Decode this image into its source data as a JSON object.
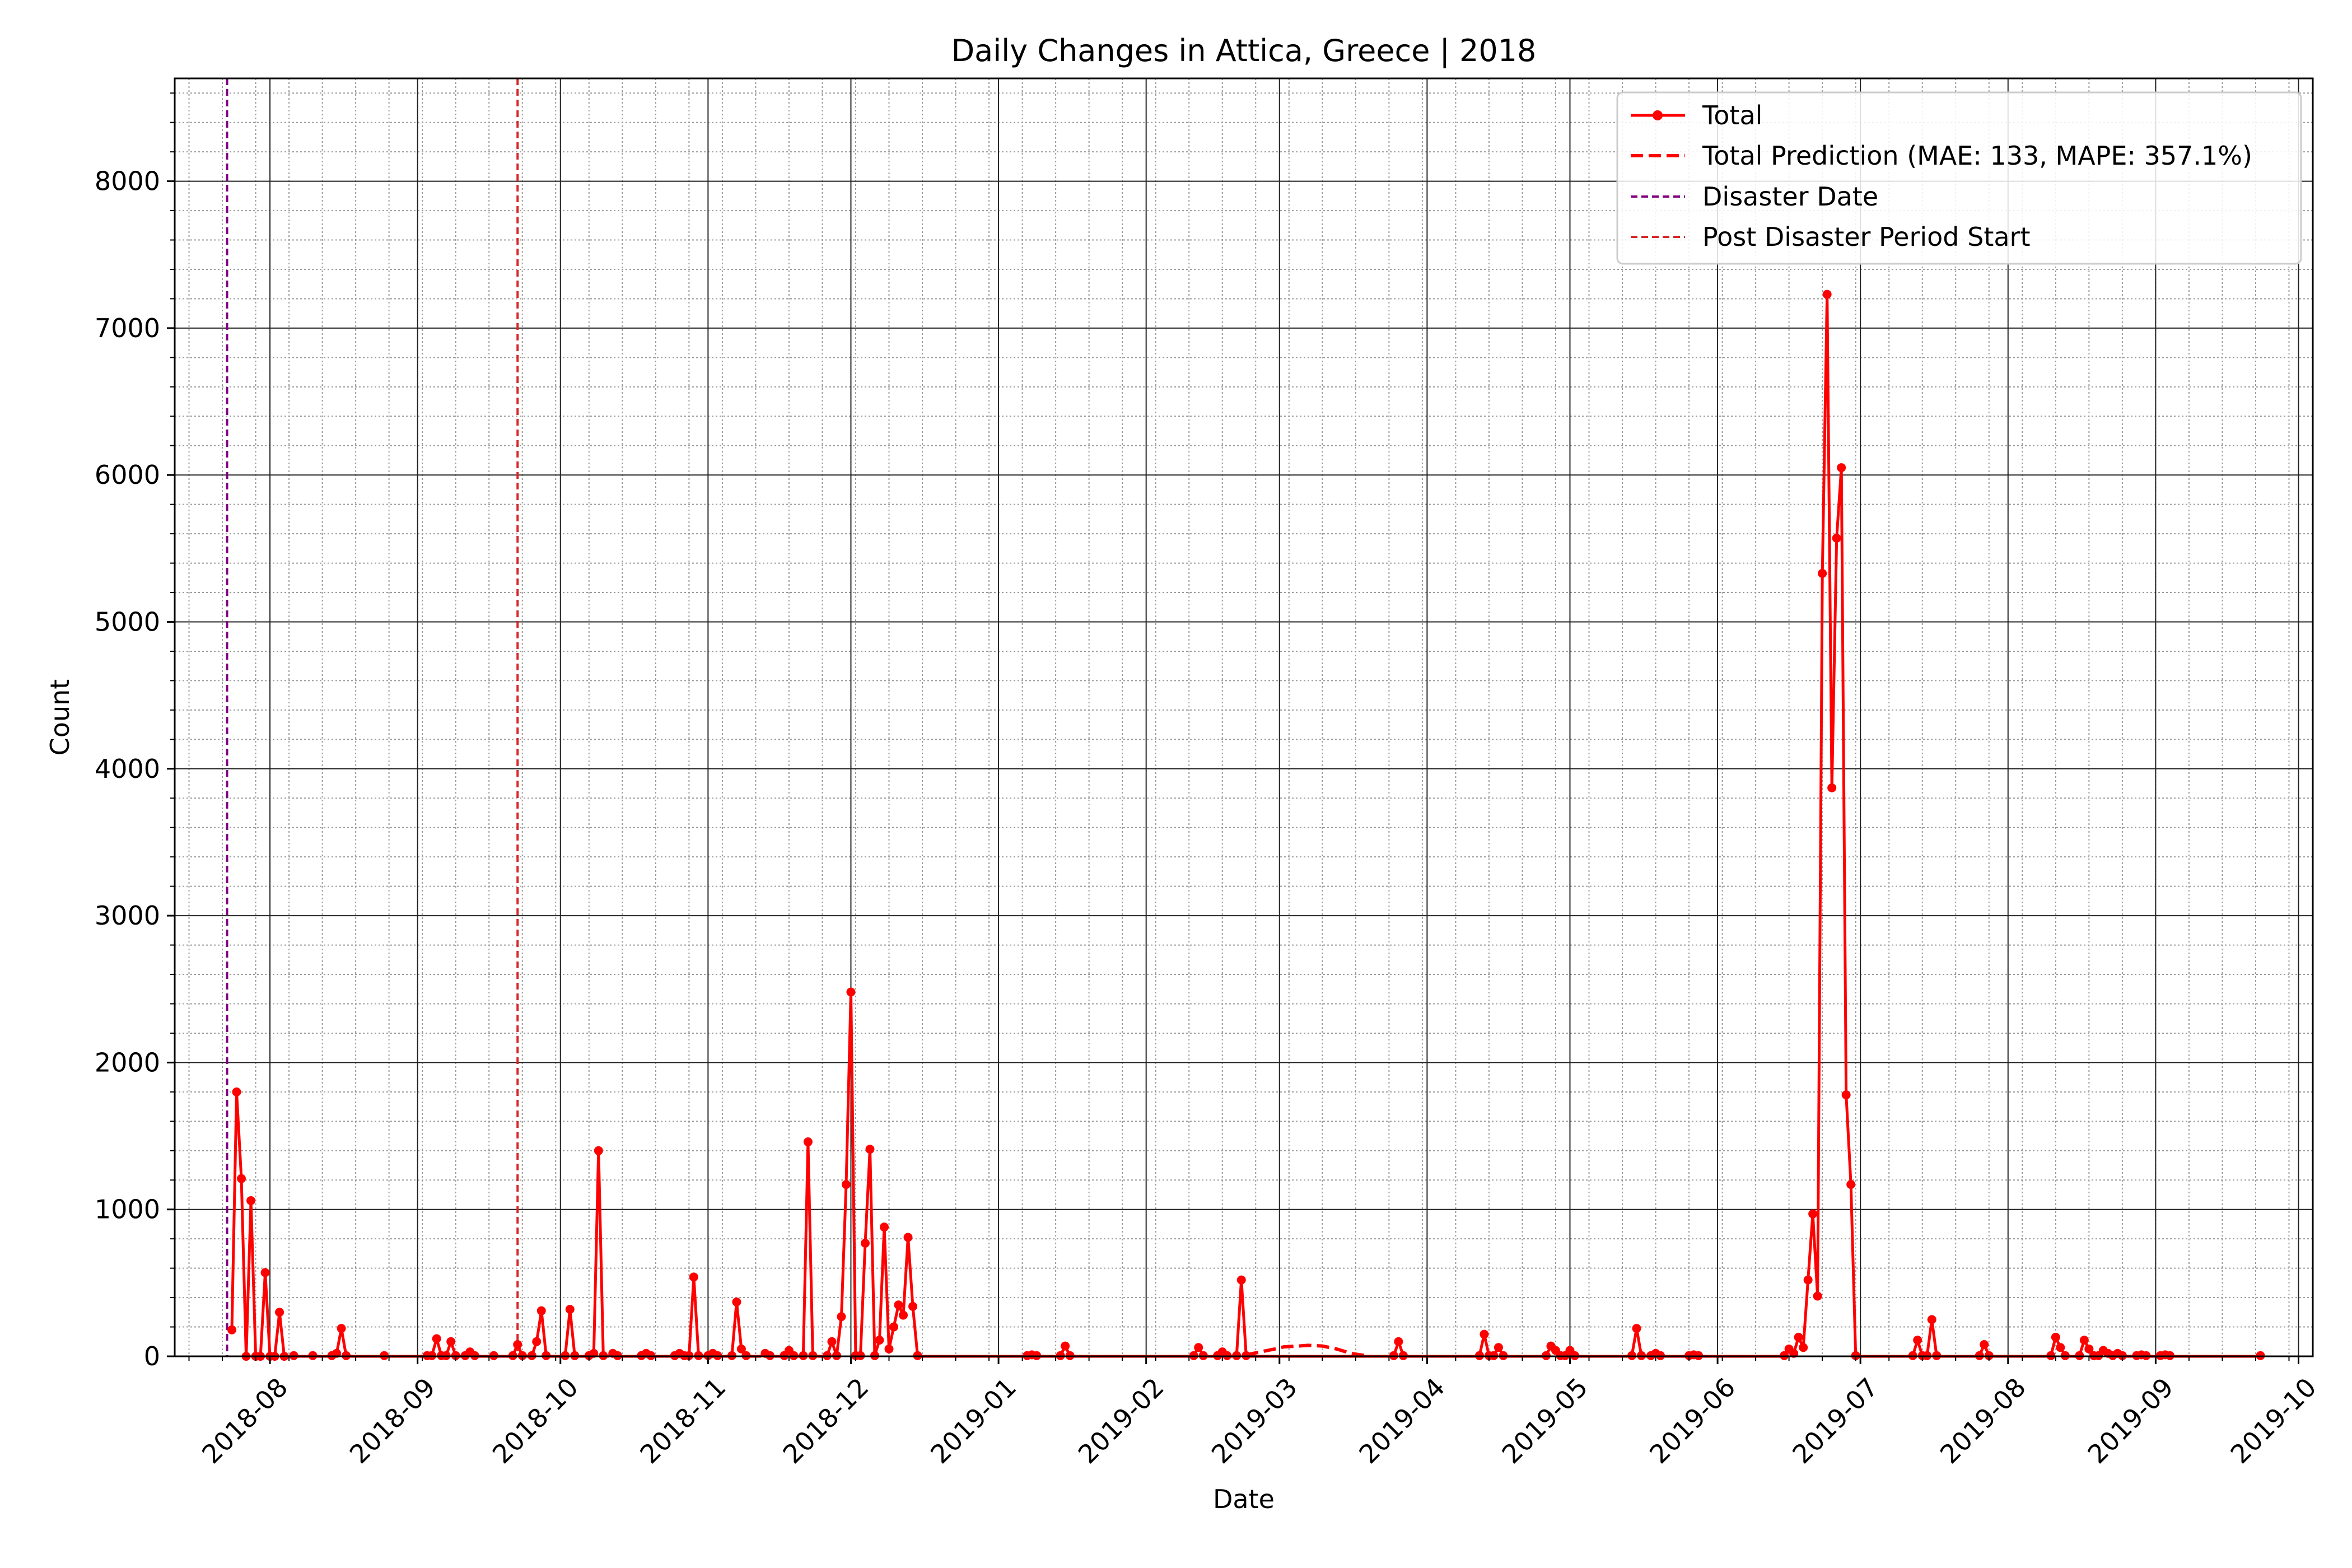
{
  "chart_data": {
    "type": "line",
    "title": "Daily Changes in Attica, Greece | 2018",
    "xlabel": "Date",
    "ylabel": "Count",
    "ylim": [
      0,
      8700
    ],
    "xlim": [
      "2018-07-12",
      "2019-10-04"
    ],
    "yticks": [
      0,
      1000,
      2000,
      3000,
      4000,
      5000,
      6000,
      7000,
      8000
    ],
    "xticks": [
      "2018-08",
      "2018-09",
      "2018-10",
      "2018-11",
      "2018-12",
      "2019-01",
      "2019-02",
      "2019-03",
      "2019-04",
      "2019-05",
      "2019-06",
      "2019-07",
      "2019-08",
      "2019-09",
      "2019-10"
    ],
    "legend_position": "top-right",
    "legend": {
      "total": "Total",
      "prediction": "Total Prediction (MAE: 133, MAPE: 357.1%)",
      "disaster": "Disaster Date",
      "post": "Post Disaster Period Start"
    },
    "vlines": {
      "disaster_date": "2018-07-23",
      "post_disaster_start": "2018-09-22"
    },
    "colors": {
      "total": "#ff0000",
      "prediction": "#ff0000",
      "disaster": "#800080",
      "post": "#d62728"
    },
    "series": [
      {
        "name": "Total",
        "points": [
          [
            "2018-07-24",
            180
          ],
          [
            "2018-07-25",
            1800
          ],
          [
            "2018-07-26",
            1210
          ],
          [
            "2018-07-27",
            0
          ],
          [
            "2018-07-28",
            1060
          ],
          [
            "2018-07-29",
            0
          ],
          [
            "2018-07-30",
            0
          ],
          [
            "2018-07-31",
            570
          ],
          [
            "2018-08-01",
            0
          ],
          [
            "2018-08-02",
            0
          ],
          [
            "2018-08-03",
            300
          ],
          [
            "2018-08-04",
            0
          ],
          [
            "2018-08-06",
            5
          ],
          [
            "2018-08-10",
            5
          ],
          [
            "2018-08-14",
            5
          ],
          [
            "2018-08-15",
            20
          ],
          [
            "2018-08-16",
            190
          ],
          [
            "2018-08-17",
            5
          ],
          [
            "2018-08-25",
            5
          ],
          [
            "2018-09-03",
            5
          ],
          [
            "2018-09-04",
            5
          ],
          [
            "2018-09-05",
            120
          ],
          [
            "2018-09-06",
            5
          ],
          [
            "2018-09-07",
            5
          ],
          [
            "2018-09-08",
            100
          ],
          [
            "2018-09-09",
            5
          ],
          [
            "2018-09-11",
            5
          ],
          [
            "2018-09-12",
            30
          ],
          [
            "2018-09-13",
            5
          ],
          [
            "2018-09-17",
            5
          ],
          [
            "2018-09-21",
            5
          ],
          [
            "2018-09-22",
            80
          ],
          [
            "2018-09-23",
            5
          ],
          [
            "2018-09-25",
            5
          ],
          [
            "2018-09-26",
            100
          ],
          [
            "2018-09-27",
            310
          ],
          [
            "2018-09-28",
            5
          ],
          [
            "2018-10-02",
            5
          ],
          [
            "2018-10-03",
            320
          ],
          [
            "2018-10-04",
            5
          ],
          [
            "2018-10-07",
            5
          ],
          [
            "2018-10-08",
            20
          ],
          [
            "2018-10-09",
            1400
          ],
          [
            "2018-10-10",
            5
          ],
          [
            "2018-10-12",
            20
          ],
          [
            "2018-10-13",
            5
          ],
          [
            "2018-10-18",
            5
          ],
          [
            "2018-10-19",
            20
          ],
          [
            "2018-10-20",
            5
          ],
          [
            "2018-10-25",
            5
          ],
          [
            "2018-10-26",
            20
          ],
          [
            "2018-10-27",
            5
          ],
          [
            "2018-10-28",
            5
          ],
          [
            "2018-10-29",
            540
          ],
          [
            "2018-10-30",
            5
          ],
          [
            "2018-11-01",
            5
          ],
          [
            "2018-11-02",
            20
          ],
          [
            "2018-11-03",
            5
          ],
          [
            "2018-11-06",
            5
          ],
          [
            "2018-11-07",
            370
          ],
          [
            "2018-11-08",
            50
          ],
          [
            "2018-11-09",
            5
          ],
          [
            "2018-11-13",
            20
          ],
          [
            "2018-11-14",
            5
          ],
          [
            "2018-11-17",
            5
          ],
          [
            "2018-11-18",
            40
          ],
          [
            "2018-11-19",
            5
          ],
          [
            "2018-11-21",
            5
          ],
          [
            "2018-11-22",
            1460
          ],
          [
            "2018-11-23",
            5
          ],
          [
            "2018-11-26",
            5
          ],
          [
            "2018-11-27",
            100
          ],
          [
            "2018-11-28",
            5
          ],
          [
            "2018-11-29",
            270
          ],
          [
            "2018-11-30",
            1170
          ],
          [
            "2018-12-01",
            2480
          ],
          [
            "2018-12-02",
            5
          ],
          [
            "2018-12-03",
            5
          ],
          [
            "2018-12-04",
            770
          ],
          [
            "2018-12-05",
            1410
          ],
          [
            "2018-12-06",
            5
          ],
          [
            "2018-12-07",
            110
          ],
          [
            "2018-12-08",
            880
          ],
          [
            "2018-12-09",
            50
          ],
          [
            "2018-12-10",
            200
          ],
          [
            "2018-12-11",
            350
          ],
          [
            "2018-12-12",
            280
          ],
          [
            "2018-12-13",
            810
          ],
          [
            "2018-12-14",
            340
          ],
          [
            "2018-12-15",
            5
          ],
          [
            "2019-01-07",
            5
          ],
          [
            "2019-01-08",
            10
          ],
          [
            "2019-01-09",
            5
          ],
          [
            "2019-01-14",
            5
          ],
          [
            "2019-01-15",
            70
          ],
          [
            "2019-01-16",
            5
          ],
          [
            "2019-02-11",
            5
          ],
          [
            "2019-02-12",
            60
          ],
          [
            "2019-02-13",
            5
          ],
          [
            "2019-02-16",
            5
          ],
          [
            "2019-02-17",
            30
          ],
          [
            "2019-02-18",
            5
          ],
          [
            "2019-02-20",
            5
          ],
          [
            "2019-02-21",
            520
          ],
          [
            "2019-02-22",
            5
          ],
          [
            "2019-03-25",
            5
          ],
          [
            "2019-03-26",
            100
          ],
          [
            "2019-03-27",
            5
          ],
          [
            "2019-04-12",
            5
          ],
          [
            "2019-04-13",
            150
          ],
          [
            "2019-04-14",
            5
          ],
          [
            "2019-04-15",
            5
          ],
          [
            "2019-04-16",
            60
          ],
          [
            "2019-04-17",
            5
          ],
          [
            "2019-04-26",
            5
          ],
          [
            "2019-04-27",
            70
          ],
          [
            "2019-04-28",
            40
          ],
          [
            "2019-04-29",
            5
          ],
          [
            "2019-04-30",
            5
          ],
          [
            "2019-05-01",
            40
          ],
          [
            "2019-05-02",
            5
          ],
          [
            "2019-05-14",
            5
          ],
          [
            "2019-05-15",
            190
          ],
          [
            "2019-05-16",
            5
          ],
          [
            "2019-05-18",
            5
          ],
          [
            "2019-05-19",
            20
          ],
          [
            "2019-05-20",
            5
          ],
          [
            "2019-05-26",
            5
          ],
          [
            "2019-05-27",
            10
          ],
          [
            "2019-05-28",
            5
          ],
          [
            "2019-06-15",
            5
          ],
          [
            "2019-06-16",
            50
          ],
          [
            "2019-06-17",
            20
          ],
          [
            "2019-06-18",
            130
          ],
          [
            "2019-06-19",
            60
          ],
          [
            "2019-06-20",
            520
          ],
          [
            "2019-06-21",
            970
          ],
          [
            "2019-06-22",
            410
          ],
          [
            "2019-06-23",
            5330
          ],
          [
            "2019-06-24",
            7230
          ],
          [
            "2019-06-25",
            3870
          ],
          [
            "2019-06-26",
            5570
          ],
          [
            "2019-06-27",
            6050
          ],
          [
            "2019-06-28",
            1780
          ],
          [
            "2019-06-29",
            1170
          ],
          [
            "2019-06-30",
            5
          ],
          [
            "2019-07-12",
            5
          ],
          [
            "2019-07-13",
            110
          ],
          [
            "2019-07-14",
            5
          ],
          [
            "2019-07-15",
            5
          ],
          [
            "2019-07-16",
            250
          ],
          [
            "2019-07-17",
            5
          ],
          [
            "2019-07-26",
            5
          ],
          [
            "2019-07-27",
            80
          ],
          [
            "2019-07-28",
            5
          ],
          [
            "2019-08-10",
            5
          ],
          [
            "2019-08-11",
            130
          ],
          [
            "2019-08-12",
            60
          ],
          [
            "2019-08-13",
            5
          ],
          [
            "2019-08-16",
            5
          ],
          [
            "2019-08-17",
            110
          ],
          [
            "2019-08-18",
            50
          ],
          [
            "2019-08-19",
            5
          ],
          [
            "2019-08-20",
            5
          ],
          [
            "2019-08-21",
            40
          ],
          [
            "2019-08-22",
            20
          ],
          [
            "2019-08-23",
            5
          ],
          [
            "2019-08-24",
            20
          ],
          [
            "2019-08-25",
            5
          ],
          [
            "2019-08-28",
            5
          ],
          [
            "2019-08-29",
            10
          ],
          [
            "2019-08-30",
            5
          ],
          [
            "2019-09-02",
            5
          ],
          [
            "2019-09-03",
            10
          ],
          [
            "2019-09-04",
            5
          ],
          [
            "2019-09-23",
            5
          ]
        ]
      },
      {
        "name": "Total Prediction",
        "style": "dashed",
        "points": [
          [
            "2019-02-22",
            10
          ],
          [
            "2019-02-25",
            30
          ],
          [
            "2019-02-28",
            50
          ],
          [
            "2019-03-02",
            65
          ],
          [
            "2019-03-05",
            70
          ],
          [
            "2019-03-07",
            75
          ],
          [
            "2019-03-10",
            70
          ],
          [
            "2019-03-13",
            50
          ],
          [
            "2019-03-16",
            20
          ],
          [
            "2019-03-19",
            5
          ]
        ]
      }
    ]
  }
}
